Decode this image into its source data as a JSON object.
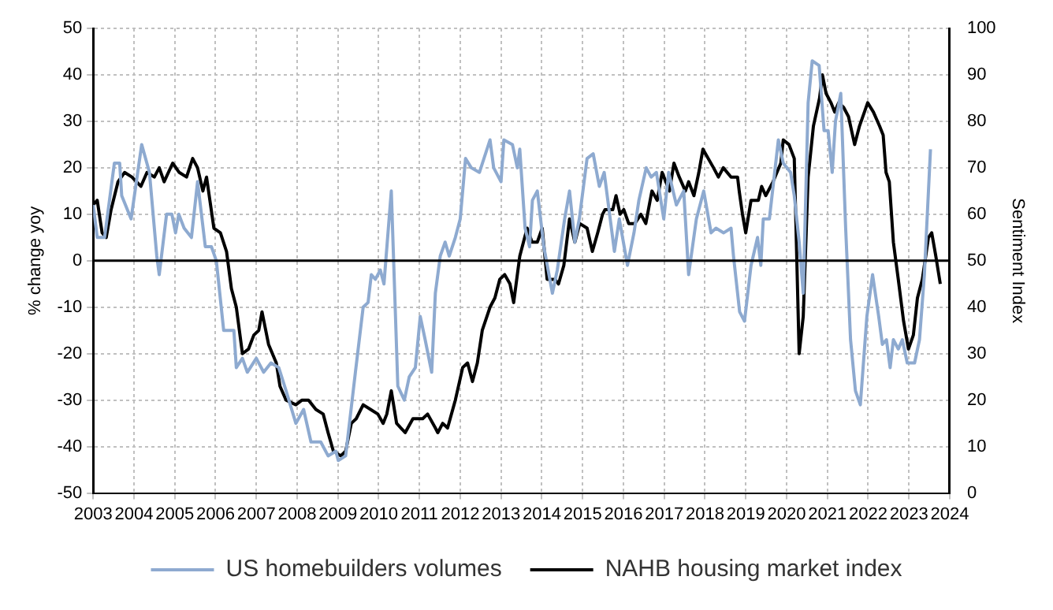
{
  "chart_data": {
    "type": "line",
    "ylabel": "% change yoy",
    "y2label": "Sentiment Index",
    "xlim": [
      2003,
      2024
    ],
    "xticks": [
      2003,
      2004,
      2005,
      2006,
      2007,
      2008,
      2009,
      2010,
      2011,
      2012,
      2013,
      2014,
      2015,
      2016,
      2017,
      2018,
      2019,
      2020,
      2021,
      2022,
      2023,
      2024
    ],
    "ylim": [
      -50,
      50
    ],
    "yticks": [
      -50,
      -40,
      -30,
      -20,
      -10,
      0,
      10,
      20,
      30,
      40,
      50
    ],
    "y2lim": [
      0,
      100
    ],
    "y2ticks": [
      0,
      10,
      20,
      30,
      40,
      50,
      60,
      70,
      80,
      90,
      100
    ],
    "grid": true,
    "legend": "bottom",
    "marker": "none",
    "line_style": "solid",
    "ref_lines": [
      {
        "axis": "y",
        "value": 0,
        "color": "#000000"
      }
    ],
    "series": [
      {
        "name": "US homebuilders volumes",
        "color": "#8eaad0",
        "x": [
          2003.0,
          2003.1,
          2003.28,
          2003.52,
          2003.65,
          2003.7,
          2003.93,
          2004.19,
          2004.38,
          2004.56,
          2004.62,
          2004.8,
          2004.93,
          2005.02,
          2005.1,
          2005.23,
          2005.41,
          2005.56,
          2005.75,
          2005.9,
          2006.02,
          2006.2,
          2006.45,
          2006.51,
          2006.66,
          2006.78,
          2007.0,
          2007.18,
          2007.36,
          2007.55,
          2007.73,
          2007.97,
          2008.16,
          2008.34,
          2008.58,
          2008.76,
          2008.95,
          2009.01,
          2009.19,
          2009.43,
          2009.62,
          2009.74,
          2009.82,
          2009.92,
          2010.04,
          2010.13,
          2010.31,
          2010.47,
          2010.63,
          2010.75,
          2010.9,
          2011.02,
          2011.14,
          2011.3,
          2011.39,
          2011.51,
          2011.63,
          2011.73,
          2011.88,
          2012.0,
          2012.13,
          2012.27,
          2012.47,
          2012.73,
          2012.82,
          2013.0,
          2013.07,
          2013.28,
          2013.4,
          2013.46,
          2013.59,
          2013.7,
          2013.77,
          2013.89,
          2014.05,
          2014.26,
          2014.38,
          2014.56,
          2014.68,
          2014.81,
          2014.92,
          2015.11,
          2015.26,
          2015.41,
          2015.53,
          2015.78,
          2015.9,
          2016.1,
          2016.26,
          2016.38,
          2016.56,
          2016.68,
          2016.81,
          2016.99,
          2017.11,
          2017.3,
          2017.48,
          2017.6,
          2017.79,
          2017.97,
          2018.15,
          2018.27,
          2018.46,
          2018.64,
          2018.7,
          2018.85,
          2018.97,
          2019.13,
          2019.29,
          2019.37,
          2019.43,
          2019.58,
          2019.8,
          2019.92,
          2020.1,
          2020.19,
          2020.31,
          2020.41,
          2020.53,
          2020.63,
          2020.8,
          2020.92,
          2021.02,
          2021.12,
          2021.2,
          2021.33,
          2021.45,
          2021.57,
          2021.69,
          2021.81,
          2021.97,
          2022.11,
          2022.26,
          2022.35,
          2022.45,
          2022.54,
          2022.62,
          2022.74,
          2022.84,
          2022.96,
          2023.14,
          2023.26,
          2023.38,
          2023.53
        ],
        "values": [
          12,
          5,
          5,
          21,
          21,
          14,
          9,
          25,
          19,
          1,
          -3,
          10,
          10,
          6,
          10,
          7,
          5,
          17,
          3,
          3,
          0,
          -15,
          -15,
          -23,
          -21,
          -24,
          -21,
          -24,
          -22,
          -23,
          -28,
          -35,
          -32,
          -39,
          -39,
          -42,
          -41,
          -43,
          -42,
          -24,
          -10,
          -9,
          -3,
          -4,
          -2,
          -5,
          15,
          -27,
          -30,
          -25,
          -23,
          -12,
          -17,
          -24,
          -7,
          1,
          4,
          1,
          5,
          9,
          22,
          20,
          19,
          26,
          20,
          17,
          26,
          25,
          20,
          24,
          7,
          3,
          13,
          15,
          3,
          -7,
          -2,
          9,
          15,
          4,
          9,
          22,
          23,
          16,
          19,
          2,
          9,
          -1,
          6,
          13,
          20,
          18,
          19,
          9,
          19,
          12,
          15,
          -3,
          9,
          15,
          6,
          7,
          6,
          7,
          1,
          -11,
          -13,
          -1,
          5,
          -1,
          9,
          9,
          26,
          21,
          19,
          14,
          4,
          -7,
          34,
          43,
          42,
          28,
          28,
          19,
          30,
          36,
          7,
          -17,
          -28,
          -31,
          -12,
          -3,
          -12,
          -18,
          -17,
          -23,
          -17,
          -19,
          -17,
          -22,
          -22,
          -17,
          -3,
          24
        ]
      },
      {
        "name": "NAHB housing market index",
        "color": "#000000",
        "axis": "y2",
        "x": [
          2003.0,
          2003.1,
          2003.22,
          2003.32,
          2003.44,
          2003.61,
          2003.77,
          2003.95,
          2004.17,
          2004.32,
          2004.5,
          2004.62,
          2004.74,
          2004.95,
          2005.11,
          2005.29,
          2005.44,
          2005.56,
          2005.69,
          2005.78,
          2005.96,
          2006.12,
          2006.27,
          2006.39,
          2006.51,
          2006.66,
          2006.81,
          2006.94,
          2007.06,
          2007.14,
          2007.3,
          2007.49,
          2007.58,
          2007.73,
          2007.97,
          2008.12,
          2008.28,
          2008.46,
          2008.64,
          2008.76,
          2008.89,
          2009.07,
          2009.19,
          2009.33,
          2009.45,
          2009.62,
          2009.8,
          2009.98,
          2010.11,
          2010.2,
          2010.31,
          2010.44,
          2010.65,
          2010.84,
          2010.9,
          2011.08,
          2011.2,
          2011.39,
          2011.45,
          2011.57,
          2011.69,
          2011.88,
          2012.06,
          2012.18,
          2012.3,
          2012.42,
          2012.54,
          2012.73,
          2012.85,
          2012.97,
          2013.09,
          2013.22,
          2013.31,
          2013.46,
          2013.64,
          2013.76,
          2013.89,
          2014.01,
          2014.13,
          2014.32,
          2014.41,
          2014.54,
          2014.68,
          2014.81,
          2014.93,
          2015.11,
          2015.24,
          2015.37,
          2015.49,
          2015.55,
          2015.74,
          2015.82,
          2015.92,
          2016.01,
          2016.13,
          2016.28,
          2016.43,
          2016.55,
          2016.7,
          2016.83,
          2016.95,
          2017.13,
          2017.24,
          2017.37,
          2017.52,
          2017.6,
          2017.73,
          2017.85,
          2017.95,
          2018.21,
          2018.33,
          2018.45,
          2018.64,
          2018.8,
          2018.84,
          2018.92,
          2019.0,
          2019.13,
          2019.31,
          2019.39,
          2019.49,
          2019.67,
          2019.86,
          2019.92,
          2020.06,
          2020.19,
          2020.31,
          2020.41,
          2020.53,
          2020.66,
          2020.81,
          2020.88,
          2020.97,
          2021.09,
          2021.18,
          2021.28,
          2021.4,
          2021.52,
          2021.67,
          2021.79,
          2021.99,
          2022.13,
          2022.28,
          2022.37,
          2022.44,
          2022.52,
          2022.62,
          2022.74,
          2022.87,
          2022.99,
          2023.11,
          2023.21,
          2023.33,
          2023.48,
          2023.56,
          2023.66,
          2023.77
        ],
        "values": [
          62,
          63,
          56,
          55,
          61,
          67,
          69,
          68,
          66,
          69,
          68,
          70,
          67,
          71,
          69,
          68,
          72,
          70,
          65,
          68,
          57,
          56,
          52,
          44,
          40,
          30,
          31,
          34,
          35,
          39,
          32,
          28,
          23,
          20,
          19,
          20,
          20,
          18,
          17,
          13,
          9,
          8,
          9,
          15,
          16,
          19,
          18,
          17,
          15,
          17,
          22,
          15,
          13,
          16,
          16,
          16,
          17,
          14,
          13,
          15,
          14,
          20,
          27,
          28,
          24,
          28,
          35,
          40,
          42,
          46,
          47,
          45,
          41,
          51,
          57,
          54,
          54,
          57,
          46,
          46,
          45,
          49,
          59,
          54,
          58,
          57,
          52,
          56,
          60,
          61,
          61,
          64,
          60,
          61,
          58,
          58,
          60,
          58,
          65,
          63,
          69,
          65,
          71,
          68,
          65,
          67,
          64,
          69,
          74,
          70,
          68,
          70,
          68,
          68,
          65,
          60,
          56,
          63,
          63,
          66,
          64,
          67,
          71,
          76,
          75,
          72,
          30,
          38,
          68,
          79,
          85,
          90,
          86,
          84,
          82,
          84,
          83,
          81,
          75,
          79,
          84,
          82,
          79,
          77,
          69,
          67,
          54,
          46,
          37,
          31,
          34,
          42,
          46,
          55,
          56,
          51,
          45
        ]
      }
    ]
  }
}
